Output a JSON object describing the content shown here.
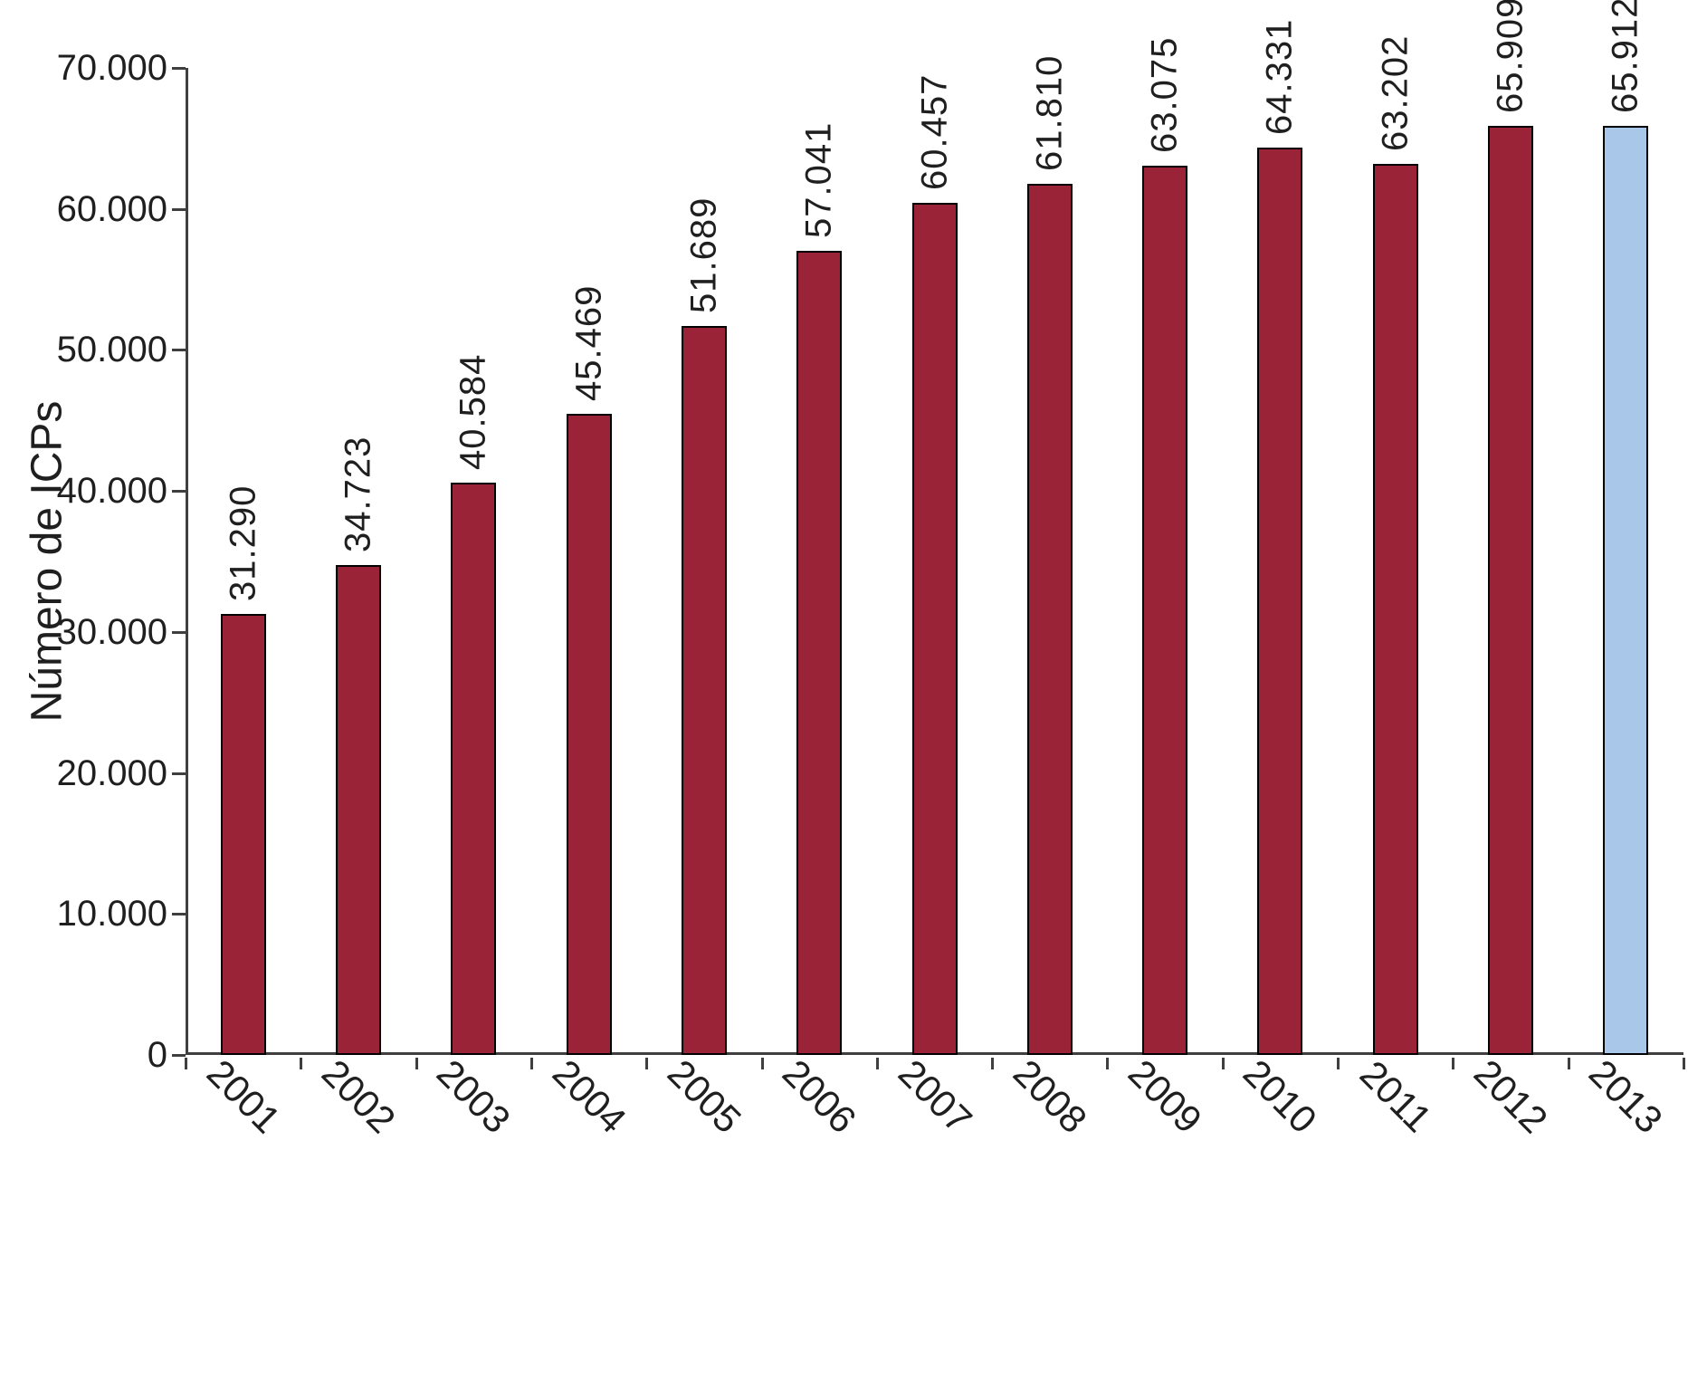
{
  "chart_data": {
    "type": "bar",
    "title": "",
    "xlabel": "",
    "ylabel": "Número de ICPs",
    "categories": [
      "2001",
      "2002",
      "2003",
      "2004",
      "2005",
      "2006",
      "2007",
      "2008",
      "2009",
      "2010",
      "2011",
      "2012",
      "2013"
    ],
    "values": [
      31290,
      34723,
      40584,
      45469,
      51689,
      57041,
      60457,
      61810,
      63075,
      64331,
      63202,
      65909,
      65912
    ],
    "value_labels": [
      "31.290",
      "34.723",
      "40.584",
      "45.469",
      "51.689",
      "57.041",
      "60.457",
      "61.810",
      "63.075",
      "64.331",
      "63.202",
      "65.909",
      "65.912"
    ],
    "ylim": [
      0,
      70000
    ],
    "ytick_values": [
      0,
      10000,
      20000,
      30000,
      40000,
      50000,
      60000,
      70000
    ],
    "ytick_labels": [
      "0",
      "10.000",
      "20.000",
      "30.000",
      "40.000",
      "50.000",
      "60.000",
      "70.000"
    ],
    "grid": false,
    "legend": "none",
    "bar_color": "#9b2338",
    "bar_border_color": "#000000",
    "highlight_index": 12,
    "highlight_color": "#a9c7e8",
    "axis_color": "#3f3f3f"
  }
}
